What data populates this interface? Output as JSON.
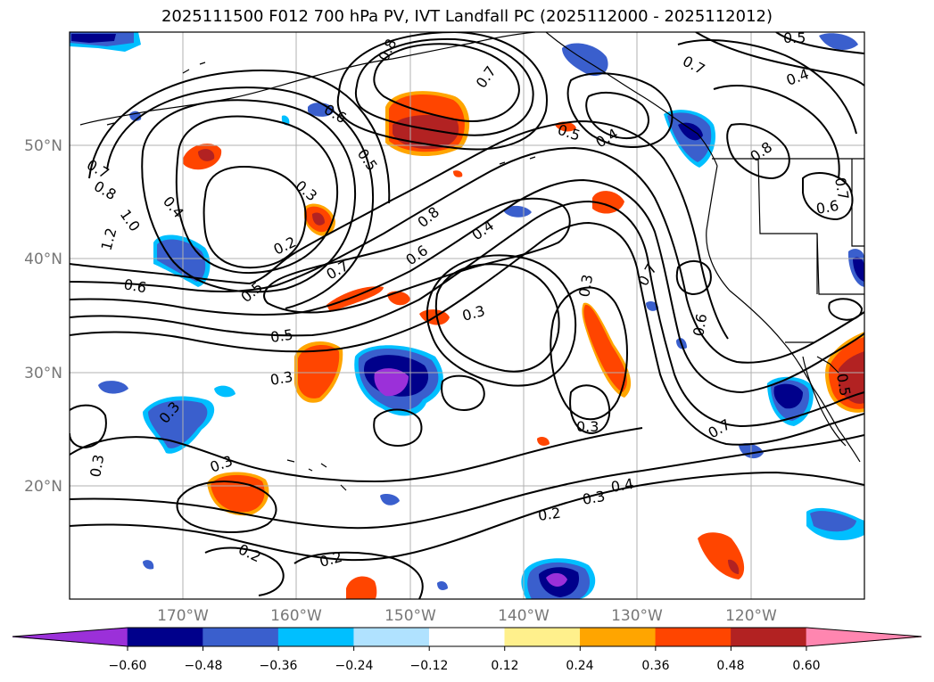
{
  "title": "2025111500 F012 700 hPa PV, IVT Landfall PC (2025112000 - 2025112012)",
  "lat_labels": [
    "50°N",
    "40°N",
    "30°N",
    "20°N"
  ],
  "lon_labels": [
    "170°W",
    "160°W",
    "150°W",
    "140°W",
    "130°W",
    "120°W"
  ],
  "contour_labels": [
    "0.5",
    "0.7",
    "0.8",
    "0.7",
    "0.6",
    "0.4",
    "0.5",
    "0.4",
    "0.8",
    "0.7",
    "0.8",
    "0.5",
    "0.6",
    "0.7",
    "1.0",
    "1.2",
    "0.4",
    "0.3",
    "0.2",
    "0.4",
    "0.8",
    "0.6",
    "0.7",
    "0.5",
    "0.5",
    "0.3",
    "0.3",
    "0.7",
    "0.6",
    "0.3",
    "0.3",
    "0.3",
    "0.3",
    "0.7",
    "0.4",
    "0.3",
    "0.2",
    "0.2",
    "0.2",
    "0.6",
    "0.5"
  ],
  "colorbar": {
    "ticks": [
      "−0.60",
      "−0.48",
      "−0.36",
      "−0.24",
      "−0.12",
      "0.12",
      "0.24",
      "0.36",
      "0.48",
      "0.60"
    ],
    "colors": [
      "#9b30d9",
      "#00008b",
      "#3a5fcd",
      "#00bfff",
      "#b0e2ff",
      "#ffffff",
      "#fff08c",
      "#ffa500",
      "#ff4500",
      "#b22222",
      "#ff86b0"
    ]
  },
  "field_colors": {
    "purple": "#9b30d9",
    "navy": "#00008b",
    "blue": "#3a5fcd",
    "cyan": "#00bfff",
    "yellow": "#fff08c",
    "orange": "#ffa500",
    "redorange": "#ff4500",
    "darkred": "#b22222"
  }
}
